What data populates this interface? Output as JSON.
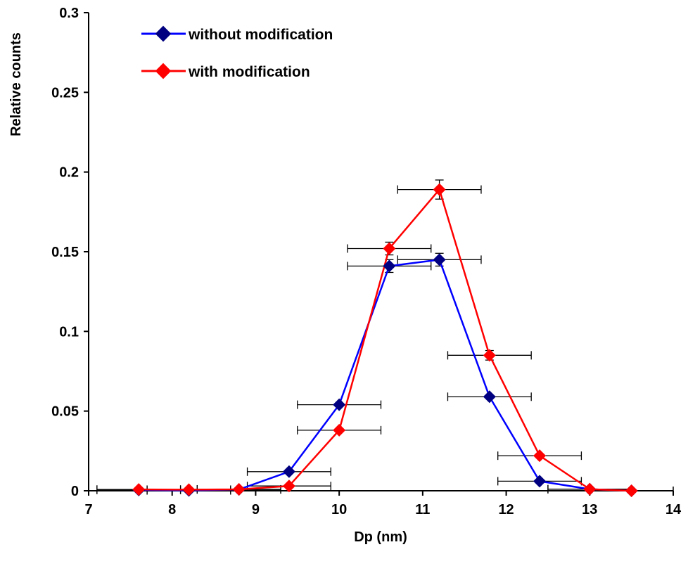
{
  "chart_data": {
    "type": "line",
    "title": "",
    "xlabel": "Dp (nm)",
    "ylabel": "Relative counts",
    "xlim": [
      7,
      14
    ],
    "ylim": [
      0,
      0.3
    ],
    "x_ticks": [
      "7",
      "8",
      "9",
      "10",
      "11",
      "12",
      "13",
      "14"
    ],
    "y_ticks": [
      "0",
      "0.05",
      "0.1",
      "0.15",
      "0.2",
      "0.25",
      "0.3"
    ],
    "x_tick_values": [
      7,
      8,
      9,
      10,
      11,
      12,
      13,
      14
    ],
    "y_tick_values": [
      0,
      0.05,
      0.1,
      0.15,
      0.2,
      0.25,
      0.3
    ],
    "grid": false,
    "legend_position": "top-left",
    "series": [
      {
        "name": "without modification",
        "color": "#0000ff",
        "marker_color": "#000080",
        "x": [
          7.6,
          8.2,
          8.8,
          9.4,
          10.0,
          10.6,
          11.2,
          11.8,
          12.4,
          13.0,
          13.5
        ],
        "y": [
          0.0005,
          0.0002,
          0.0008,
          0.012,
          0.054,
          0.141,
          0.145,
          0.059,
          0.006,
          0.001,
          0.0
        ],
        "x_error": [
          0.5,
          0.5,
          0.5,
          0.5,
          0.5,
          0.5,
          0.5,
          0.5,
          0.5,
          0.5,
          0.5
        ],
        "y_error": [
          0,
          0,
          0,
          0,
          0,
          0.004,
          0.004,
          0,
          0,
          0,
          0
        ]
      },
      {
        "name": "with modification",
        "color": "#ff0000",
        "marker_color": "#ff0000",
        "x": [
          7.6,
          8.2,
          8.8,
          9.4,
          10.0,
          10.6,
          11.2,
          11.8,
          12.4,
          13.0,
          13.5
        ],
        "y": [
          0.0008,
          0.0007,
          0.0009,
          0.003,
          0.038,
          0.152,
          0.189,
          0.085,
          0.022,
          0.001,
          0.0
        ],
        "x_error": [
          0.5,
          0.5,
          0.5,
          0.5,
          0.5,
          0.5,
          0.5,
          0.5,
          0.5,
          0.5,
          0.5
        ],
        "y_error": [
          0,
          0,
          0,
          0,
          0,
          0.004,
          0.006,
          0.003,
          0,
          0,
          0
        ]
      }
    ]
  }
}
